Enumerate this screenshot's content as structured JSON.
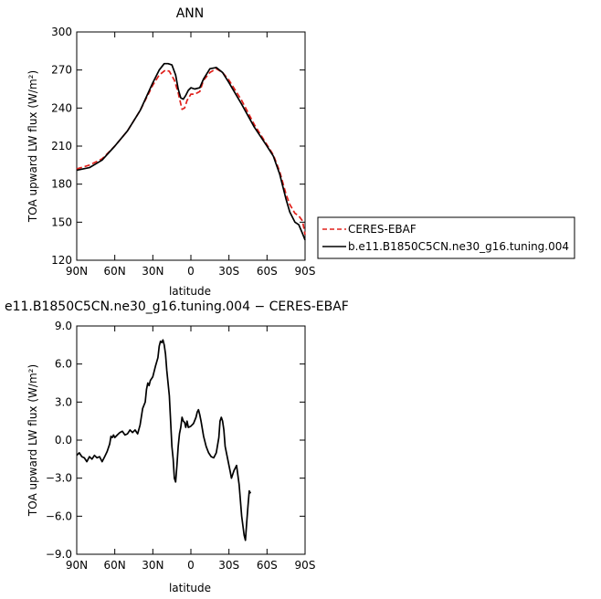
{
  "chart_data": [
    {
      "type": "line",
      "title": "ANN",
      "xlabel": "latitude",
      "ylabel": "TOA upward LW flux (W/m²)",
      "xlim": [
        90,
        -90
      ],
      "ylim": [
        120,
        300
      ],
      "xticks": [
        {
          "value": 90,
          "label": "90N"
        },
        {
          "value": 60,
          "label": "60N"
        },
        {
          "value": 30,
          "label": "30N"
        },
        {
          "value": 0,
          "label": "0"
        },
        {
          "value": -30,
          "label": "30S"
        },
        {
          "value": -60,
          "label": "60S"
        },
        {
          "value": -90,
          "label": "90S"
        }
      ],
      "yticks": [
        {
          "value": 120,
          "label": "120"
        },
        {
          "value": 150,
          "label": "150"
        },
        {
          "value": 180,
          "label": "180"
        },
        {
          "value": 210,
          "label": "210"
        },
        {
          "value": 240,
          "label": "240"
        },
        {
          "value": 270,
          "label": "270"
        },
        {
          "value": 300,
          "label": "300"
        }
      ],
      "legend": "right, outside plot",
      "series": [
        {
          "name": "CERES-EBAF",
          "color": "#e0201b",
          "dash": "dashed",
          "points": [
            [
              90,
              192
            ],
            [
              80,
              195
            ],
            [
              70,
              200
            ],
            [
              60,
              210
            ],
            [
              50,
              222
            ],
            [
              40,
              238
            ],
            [
              30,
              258
            ],
            [
              25,
              266
            ],
            [
              20,
              270
            ],
            [
              17,
              269
            ],
            [
              13,
              262
            ],
            [
              10,
              252
            ],
            [
              7,
              239
            ],
            [
              5,
              240
            ],
            [
              3,
              246
            ],
            [
              0,
              251
            ],
            [
              -3,
              251
            ],
            [
              -7,
              253
            ],
            [
              -10,
              262
            ],
            [
              -15,
              268
            ],
            [
              -20,
              271
            ],
            [
              -25,
              268
            ],
            [
              -30,
              262
            ],
            [
              -40,
              246
            ],
            [
              -50,
              227
            ],
            [
              -60,
              211
            ],
            [
              -65,
              203
            ],
            [
              -70,
              190
            ],
            [
              -75,
              172
            ],
            [
              -78,
              164
            ],
            [
              -82,
              157
            ],
            [
              -85,
              155
            ],
            [
              -88,
              151
            ],
            [
              -90,
              140
            ]
          ]
        },
        {
          "name": "b.e11.B1850C5CN.ne30_g16.tuning.004",
          "color": "#000000",
          "dash": "solid",
          "points": [
            [
              90,
              191
            ],
            [
              80,
              193
            ],
            [
              70,
              199
            ],
            [
              60,
              210
            ],
            [
              50,
              222
            ],
            [
              40,
              238
            ],
            [
              30,
              260
            ],
            [
              25,
              270
            ],
            [
              21,
              275
            ],
            [
              18,
              275
            ],
            [
              15,
              274
            ],
            [
              12,
              266
            ],
            [
              10,
              255
            ],
            [
              8,
              248
            ],
            [
              6,
              247
            ],
            [
              4,
              250
            ],
            [
              2,
              254
            ],
            [
              0,
              256
            ],
            [
              -3,
              255
            ],
            [
              -7,
              256
            ],
            [
              -10,
              263
            ],
            [
              -15,
              271
            ],
            [
              -20,
              272
            ],
            [
              -25,
              268
            ],
            [
              -30,
              260
            ],
            [
              -40,
              243
            ],
            [
              -50,
              225
            ],
            [
              -60,
              210
            ],
            [
              -65,
              202
            ],
            [
              -70,
              188
            ],
            [
              -75,
              168
            ],
            [
              -78,
              158
            ],
            [
              -82,
              150
            ],
            [
              -85,
              148
            ],
            [
              -88,
              141
            ],
            [
              -90,
              136
            ]
          ]
        }
      ]
    },
    {
      "type": "line",
      "title": "e11.B1850C5CN.ne30_g16.tuning.004 − CERES-EBAF",
      "xlabel": "latitude",
      "ylabel": "TOA upward LW flux (W/m²)",
      "xlim": [
        90,
        -90
      ],
      "ylim": [
        -9,
        9
      ],
      "xticks": [
        {
          "value": 90,
          "label": "90N"
        },
        {
          "value": 60,
          "label": "60N"
        },
        {
          "value": 30,
          "label": "30N"
        },
        {
          "value": 0,
          "label": "0"
        },
        {
          "value": -30,
          "label": "30S"
        },
        {
          "value": -60,
          "label": "60S"
        },
        {
          "value": -90,
          "label": "90S"
        }
      ],
      "yticks": [
        {
          "value": -9,
          "label": "−9.0"
        },
        {
          "value": -6,
          "label": "−6.0"
        },
        {
          "value": -3,
          "label": "−3.0"
        },
        {
          "value": 0,
          "label": "0.0"
        },
        {
          "value": 3,
          "label": "3.0"
        },
        {
          "value": 6,
          "label": "6.0"
        },
        {
          "value": 9,
          "label": "9.0"
        }
      ],
      "series": [
        {
          "color": "#000000",
          "dash": "solid",
          "points": [
            [
              90,
              -1.2
            ],
            [
              88,
              -1.0
            ],
            [
              86,
              -1.3
            ],
            [
              84,
              -1.4
            ],
            [
              82,
              -1.7
            ],
            [
              80,
              -1.3
            ],
            [
              78,
              -1.5
            ],
            [
              76,
              -1.2
            ],
            [
              74,
              -1.4
            ],
            [
              72,
              -1.3
            ],
            [
              70,
              -1.7
            ],
            [
              68,
              -1.3
            ],
            [
              66,
              -0.9
            ],
            [
              64,
              -0.3
            ],
            [
              63,
              0.3
            ],
            [
              62,
              0.2
            ],
            [
              61,
              0.4
            ],
            [
              60,
              0.2
            ],
            [
              58,
              0.4
            ],
            [
              56,
              0.6
            ],
            [
              54,
              0.7
            ],
            [
              52,
              0.4
            ],
            [
              50,
              0.5
            ],
            [
              48,
              0.8
            ],
            [
              46,
              0.6
            ],
            [
              44,
              0.8
            ],
            [
              42,
              0.5
            ],
            [
              40,
              1.2
            ],
            [
              38,
              2.5
            ],
            [
              36,
              3.0
            ],
            [
              35,
              4.0
            ],
            [
              34,
              4.5
            ],
            [
              33,
              4.3
            ],
            [
              32,
              4.7
            ],
            [
              30,
              5.0
            ],
            [
              28,
              5.8
            ],
            [
              26,
              6.5
            ],
            [
              25,
              7.4
            ],
            [
              24,
              7.8
            ],
            [
              23,
              7.7
            ],
            [
              22,
              7.9
            ],
            [
              21,
              7.5
            ],
            [
              20,
              6.8
            ],
            [
              19,
              5.5
            ],
            [
              18,
              4.5
            ],
            [
              17,
              3.5
            ],
            [
              16,
              1.5
            ],
            [
              15,
              -0.5
            ],
            [
              14,
              -1.5
            ],
            [
              13,
              -3.0
            ],
            [
              12,
              -3.3
            ],
            [
              11,
              -2.0
            ],
            [
              10,
              -0.5
            ],
            [
              9,
              0.5
            ],
            [
              8,
              1.0
            ],
            [
              7,
              1.8
            ],
            [
              6,
              1.5
            ],
            [
              5,
              1.4
            ],
            [
              4,
              1.0
            ],
            [
              3,
              1.5
            ],
            [
              2,
              1.0
            ],
            [
              0,
              1.1
            ],
            [
              -2,
              1.3
            ],
            [
              -4,
              1.8
            ],
            [
              -5,
              2.2
            ],
            [
              -6,
              2.4
            ],
            [
              -7,
              2.0
            ],
            [
              -8,
              1.5
            ],
            [
              -10,
              0.3
            ],
            [
              -12,
              -0.5
            ],
            [
              -14,
              -1.0
            ],
            [
              -16,
              -1.3
            ],
            [
              -18,
              -1.4
            ],
            [
              -20,
              -1.0
            ],
            [
              -22,
              0.2
            ],
            [
              -23,
              1.5
            ],
            [
              -24,
              1.8
            ],
            [
              -25,
              1.5
            ],
            [
              -26,
              0.8
            ],
            [
              -27,
              -0.5
            ],
            [
              -29,
              -1.5
            ],
            [
              -30,
              -2.0
            ],
            [
              -31,
              -2.5
            ],
            [
              -32,
              -3.0
            ],
            [
              -33,
              -2.7
            ],
            [
              -34,
              -2.4
            ],
            [
              -35,
              -2.2
            ],
            [
              -36,
              -2.0
            ],
            [
              -38,
              -3.5
            ],
            [
              -40,
              -6.0
            ],
            [
              -42,
              -7.5
            ],
            [
              -43,
              -7.9
            ],
            [
              -44,
              -6.5
            ],
            [
              -45,
              -5.2
            ],
            [
              -46,
              -4.0
            ],
            [
              -47,
              -4.2
            ]
          ]
        }
      ]
    }
  ]
}
